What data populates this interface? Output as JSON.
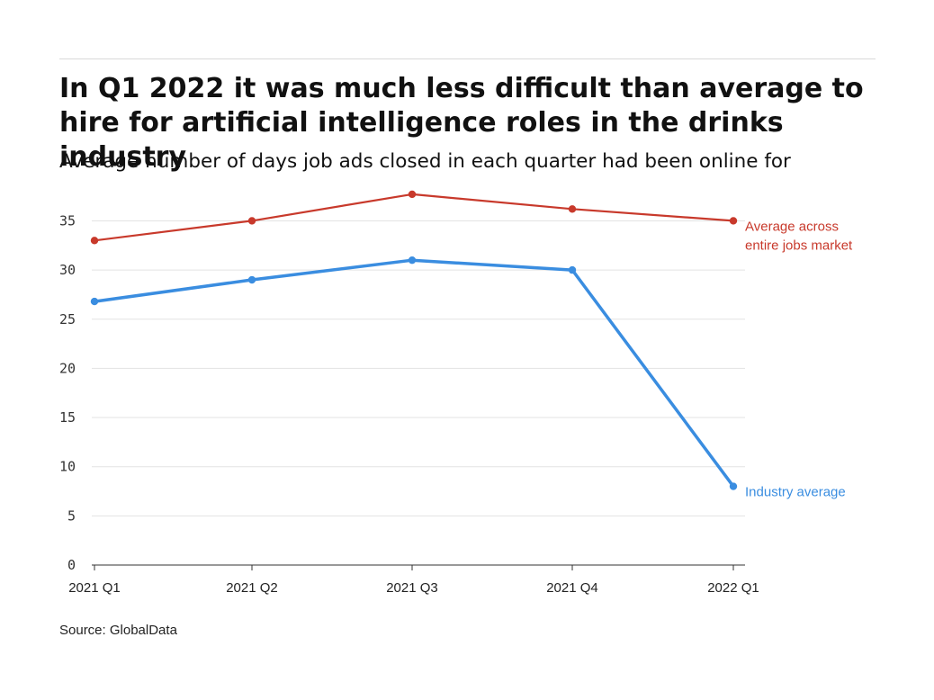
{
  "header": {
    "title": "In Q1 2022 it was much less difficult than average to hire for artificial intelligence roles in the drinks industry",
    "subtitle": "Average number of days job ads closed in each quarter had been online for"
  },
  "footer": {
    "source": "Source: GlobalData"
  },
  "chart_data": {
    "type": "line",
    "categories": [
      "2021 Q1",
      "2021 Q2",
      "2021 Q3",
      "2021 Q4",
      "2022 Q1"
    ],
    "y_ticks": [
      "0",
      "5",
      "10",
      "15",
      "20",
      "25",
      "30",
      "35"
    ],
    "ylim": [
      0,
      38
    ],
    "grid": true,
    "series": [
      {
        "name": "Average across entire jobs market",
        "label_lines": [
          "Average across",
          "entire jobs market"
        ],
        "color": "#c8392b",
        "values": [
          33.0,
          35.0,
          37.7,
          36.2,
          35.0
        ]
      },
      {
        "name": "Industry average",
        "label_lines": [
          "Industry average"
        ],
        "color": "#3a8de0",
        "values": [
          26.8,
          29.0,
          31.0,
          30.0,
          8.0
        ]
      }
    ]
  }
}
